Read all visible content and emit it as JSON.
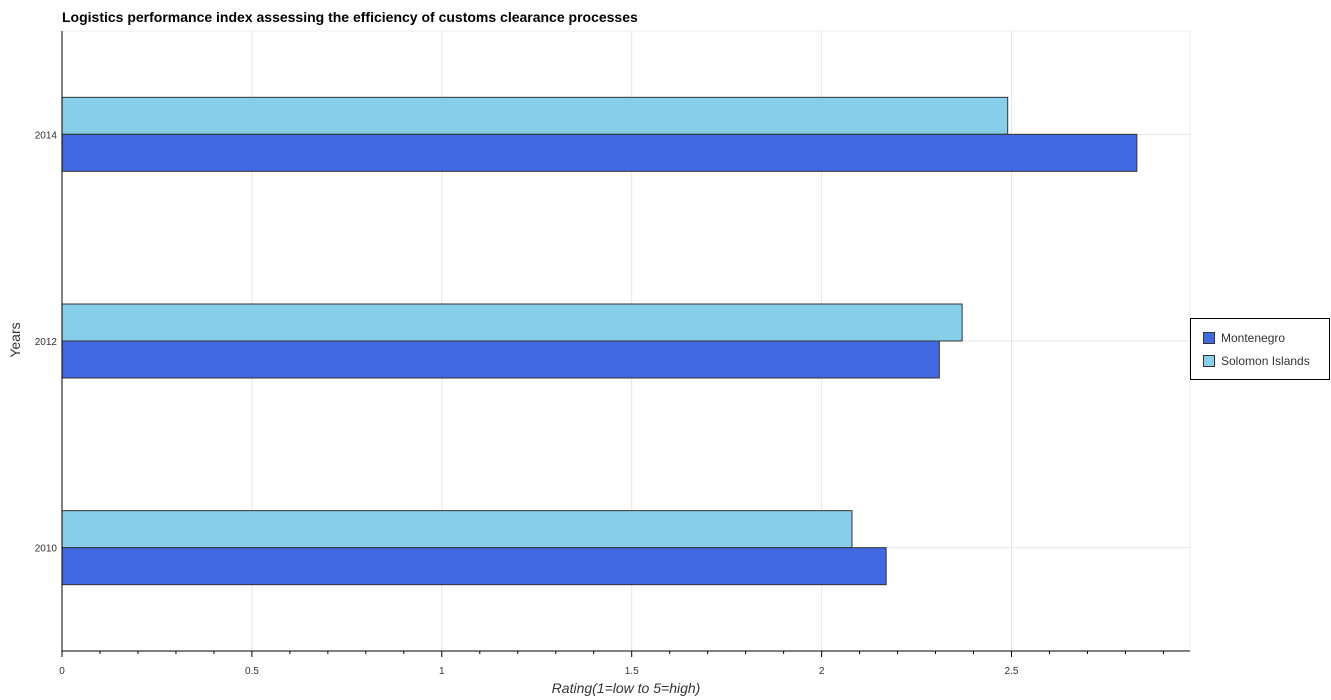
{
  "chart_data": {
    "type": "bar",
    "orientation": "horizontal",
    "title": "Logistics performance index assessing the efficiency of customs clearance processes",
    "xlabel": "Rating(1=low to 5=high)",
    "ylabel": "Years",
    "categories": [
      "2014",
      "2012",
      "2010"
    ],
    "x_ticks": [
      "0",
      "0.5",
      "1",
      "1.5",
      "2",
      "2.5"
    ],
    "xlim": [
      0,
      2.97
    ],
    "grid": true,
    "legend_position": "right",
    "series": [
      {
        "name": "Montenegro",
        "color": "#4169e1",
        "values": [
          2.83,
          2.31,
          2.17
        ]
      },
      {
        "name": "Solomon Islands",
        "color": "#87ceeb",
        "values": [
          2.49,
          2.37,
          2.08
        ]
      }
    ]
  }
}
